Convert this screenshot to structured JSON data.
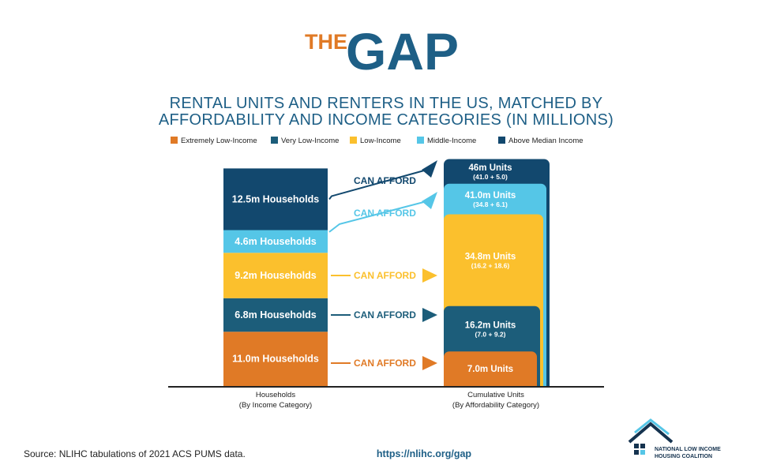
{
  "header": {
    "logo_the": "THE",
    "logo_gap": "GAP",
    "title_line1": "RENTAL UNITS AND RENTERS IN THE US, MATCHED BY",
    "title_line2": "AFFORDABILITY AND INCOME CATEGORIES (IN MILLIONS)"
  },
  "colors": {
    "extremely_low": "#e07a26",
    "very_low": "#1c5d7a",
    "low": "#fbc02d",
    "middle": "#55c6e7",
    "above_median": "#12486e",
    "title_blue": "#1e5f86",
    "logo_orange": "#e07a26"
  },
  "chart_data": {
    "type": "bar",
    "stacked": true,
    "categories": [
      "Households\n(By Income Category)",
      "Cumulative Units\n(By Affordability Category)"
    ],
    "legend_position": "top",
    "legend": [
      {
        "key": "extremely_low",
        "label": "Extremely Low-Income",
        "color": "#e07a26"
      },
      {
        "key": "very_low",
        "label": "Very Low-Income",
        "color": "#1c5d7a"
      },
      {
        "key": "low",
        "label": "Low-Income",
        "color": "#fbc02d"
      },
      {
        "key": "middle",
        "label": "Middle-Income",
        "color": "#55c6e7"
      },
      {
        "key": "above_median",
        "label": "Above Median Income",
        "color": "#12486e"
      }
    ],
    "households": [
      {
        "key": "extremely_low",
        "value": 11.0,
        "label": "11.0m Households"
      },
      {
        "key": "very_low",
        "value": 6.8,
        "label": "6.8m Households"
      },
      {
        "key": "low",
        "value": 9.2,
        "label": "9.2m Households"
      },
      {
        "key": "middle",
        "value": 4.6,
        "label": "4.6m Households"
      },
      {
        "key": "above_median",
        "value": 12.5,
        "label": "12.5m Households"
      }
    ],
    "cumulative_units": [
      {
        "key": "extremely_low",
        "value": 7.0,
        "label": "7.0m Units",
        "sub": ""
      },
      {
        "key": "very_low",
        "value": 16.2,
        "label": "16.2m Units",
        "sub": "(7.0 + 9.2)"
      },
      {
        "key": "low",
        "value": 34.8,
        "label": "34.8m Units",
        "sub": "(16.2 + 18.6)"
      },
      {
        "key": "middle",
        "value": 41.0,
        "label": "41.0m Units",
        "sub": "(34.8 + 6.1)"
      },
      {
        "key": "above_median",
        "value": 46,
        "label": "46m Units",
        "sub": "(41.0 + 5.0)"
      }
    ],
    "annotations": [
      {
        "key": "extremely_low",
        "text": "CAN AFFORD"
      },
      {
        "key": "very_low",
        "text": "CAN AFFORD"
      },
      {
        "key": "low",
        "text": "CAN AFFORD"
      },
      {
        "key": "middle",
        "text": "CAN AFFORD"
      },
      {
        "key": "above_median",
        "text": "CAN AFFORD"
      }
    ],
    "xlabel_households": [
      "Households",
      "(By Income Category)"
    ],
    "xlabel_units": [
      "Cumulative Units",
      "(By Affordability Category)"
    ]
  },
  "footer": {
    "source": "Source: NLIHC tabulations of 2021 ACS PUMS data.",
    "url": "https://nlihc.org/gap",
    "org_line1": "NATIONAL LOW INCOME",
    "org_line2": "HOUSING COALITION"
  }
}
